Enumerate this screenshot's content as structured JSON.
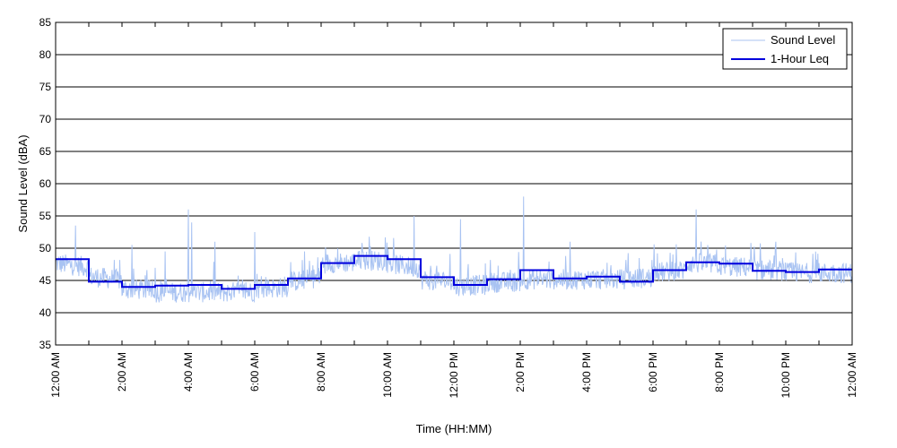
{
  "chart_data": {
    "type": "line",
    "xlabel": "Time (HH:MM)",
    "ylabel": "Sound Level (dBA)",
    "ylim": [
      35,
      85
    ],
    "yticks": [
      35,
      40,
      45,
      50,
      55,
      60,
      65,
      70,
      75,
      80,
      85
    ],
    "xlim_hours": [
      0,
      24
    ],
    "xtick_labels": [
      "12:00 AM",
      "2:00 AM",
      "4:00 AM",
      "6:00 AM",
      "8:00 AM",
      "10:00 AM",
      "12:00 PM",
      "2:00 PM",
      "4:00 PM",
      "6:00 PM",
      "8:00 PM",
      "10:00 PM",
      "12:00 AM"
    ],
    "grid": "horizontal",
    "legend_position": "top-right",
    "colors": {
      "sound_level": "#a9c3f2",
      "leq": "#0000dd"
    },
    "series": [
      {
        "name": "Sound Level",
        "style": "thin-light-line",
        "hourly_baseline": [
          47.5,
          45.5,
          43.5,
          43.0,
          43.0,
          43.0,
          43.5,
          44.5,
          47.5,
          48.0,
          47.5,
          45.0,
          44.0,
          44.5,
          45.0,
          45.0,
          45.0,
          45.0,
          46.0,
          47.5,
          47.0,
          46.5,
          46.0,
          46.0
        ],
        "peaks": [
          {
            "hour": 0.6,
            "value": 53.5
          },
          {
            "hour": 2.3,
            "value": 50.5
          },
          {
            "hour": 3.3,
            "value": 49.5
          },
          {
            "hour": 4.0,
            "value": 56.0
          },
          {
            "hour": 4.1,
            "value": 54.0
          },
          {
            "hour": 4.8,
            "value": 51.0
          },
          {
            "hour": 6.0,
            "value": 52.5
          },
          {
            "hour": 7.5,
            "value": 49.5
          },
          {
            "hour": 10.8,
            "value": 55.0
          },
          {
            "hour": 12.2,
            "value": 54.5
          },
          {
            "hour": 14.1,
            "value": 58.0
          },
          {
            "hour": 15.5,
            "value": 51.0
          },
          {
            "hour": 19.3,
            "value": 56.0
          },
          {
            "hour": 21.7,
            "value": 51.0
          }
        ]
      },
      {
        "name": "1-Hour Leq",
        "style": "step",
        "hourly_values": [
          48.3,
          44.8,
          44.0,
          44.2,
          44.3,
          43.7,
          44.3,
          45.3,
          47.7,
          48.8,
          48.3,
          45.5,
          44.3,
          45.2,
          46.6,
          45.3,
          45.6,
          44.8,
          46.6,
          47.8,
          47.6,
          46.5,
          46.3,
          46.7
        ]
      }
    ]
  }
}
